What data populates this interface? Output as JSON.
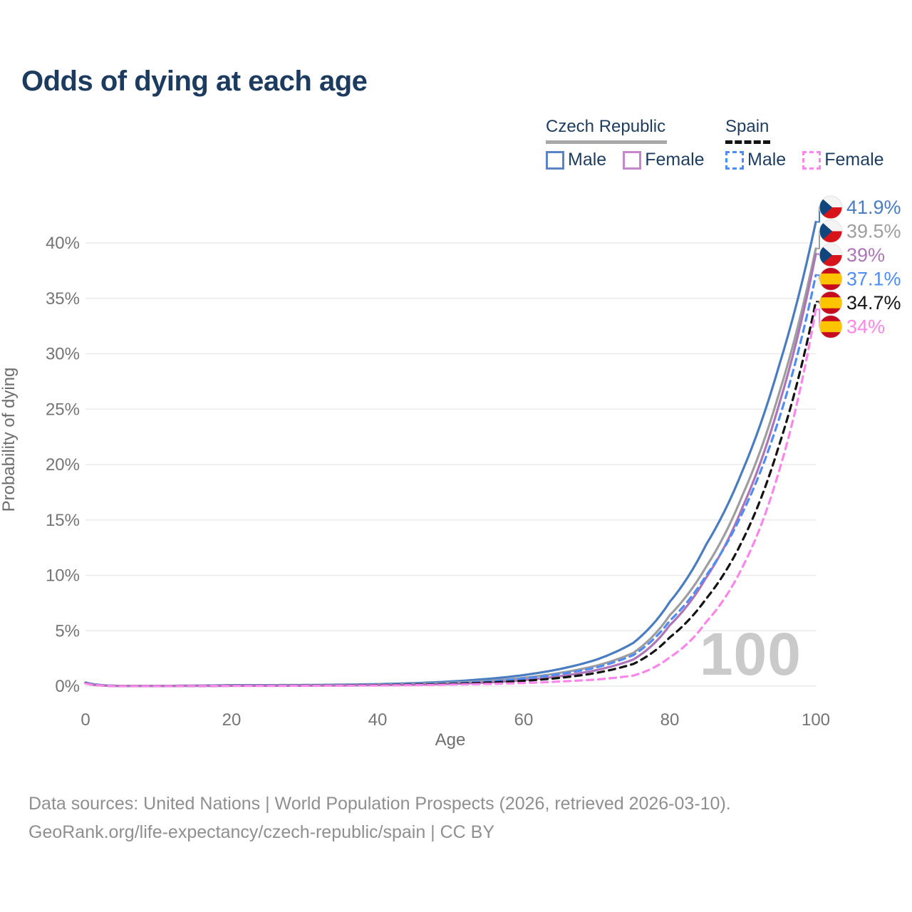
{
  "header": {
    "title": "Odds of dying at each age"
  },
  "legend": {
    "groups": [
      {
        "country": "Czech Republic",
        "line_style": "solid",
        "underline_color": "#a8a8a8",
        "items": [
          {
            "label": "Male",
            "box_color": "#5b84c4",
            "box_style": "solid"
          },
          {
            "label": "Female",
            "box_color": "#c589cb",
            "box_style": "solid"
          }
        ]
      },
      {
        "country": "Spain",
        "line_style": "dashed",
        "underline_color": "#141414",
        "items": [
          {
            "label": "Male",
            "box_color": "#4f8df5",
            "box_style": "dashed"
          },
          {
            "label": "Female",
            "box_color": "#fc86e9",
            "box_style": "dashed"
          }
        ]
      }
    ]
  },
  "chart_data": {
    "type": "line",
    "title": "Odds of dying at each age",
    "xlabel": "Age",
    "ylabel": "Probability of dying",
    "x_ticks": [
      0,
      20,
      40,
      60,
      80,
      100
    ],
    "y_tick_values": [
      0,
      5,
      10,
      15,
      20,
      25,
      30,
      35,
      40
    ],
    "y_tick_labels": [
      "0%",
      "5%",
      "10%",
      "15%",
      "20%",
      "25%",
      "30%",
      "35%",
      "40%"
    ],
    "xlim": [
      0,
      100
    ],
    "ylim_percent": [
      0,
      43
    ],
    "grid": true,
    "legend_position": "top-right",
    "age_watermark": "100",
    "ages": [
      0,
      5,
      10,
      15,
      20,
      25,
      30,
      35,
      40,
      45,
      50,
      55,
      60,
      65,
      70,
      75,
      80,
      85,
      90,
      95,
      100
    ],
    "series": [
      {
        "name": "Czech Republic Male",
        "slug": "czech-republic-male",
        "flag": "cz",
        "color": "#4a7cc0",
        "dash": "solid",
        "end_value": 41.9,
        "end_label": "41.9%",
        "values": [
          0.32,
          0.02,
          0.02,
          0.05,
          0.09,
          0.09,
          0.1,
          0.13,
          0.18,
          0.27,
          0.42,
          0.65,
          1.0,
          1.55,
          2.4,
          3.9,
          7.6,
          12.8,
          19.5,
          29.0,
          41.9
        ]
      },
      {
        "name": "Czech Republic",
        "slug": "czech-republic-total",
        "flag": "cz",
        "color": "#9e9e9e",
        "dash": "solid",
        "end_value": 39.5,
        "end_label": "39.5%",
        "values": [
          0.28,
          0.02,
          0.02,
          0.04,
          0.06,
          0.06,
          0.07,
          0.09,
          0.13,
          0.19,
          0.3,
          0.47,
          0.75,
          1.2,
          1.85,
          3.0,
          6.4,
          10.8,
          17.3,
          26.5,
          39.5
        ]
      },
      {
        "name": "Czech Republic Female",
        "slug": "czech-republic-female",
        "flag": "cz",
        "color": "#ad74b8",
        "dash": "solid",
        "end_value": 39.0,
        "end_label": "39%",
        "values": [
          0.25,
          0.01,
          0.01,
          0.02,
          0.03,
          0.03,
          0.04,
          0.06,
          0.09,
          0.13,
          0.2,
          0.33,
          0.55,
          0.9,
          1.45,
          2.4,
          5.5,
          9.8,
          16.2,
          25.5,
          39.0
        ]
      },
      {
        "name": "Spain Male",
        "slug": "spain-male",
        "flag": "es",
        "color": "#4f8df5",
        "dash": "dashed",
        "end_value": 37.1,
        "end_label": "37.1%",
        "values": [
          0.3,
          0.02,
          0.02,
          0.03,
          0.05,
          0.05,
          0.06,
          0.08,
          0.11,
          0.16,
          0.25,
          0.42,
          0.7,
          1.1,
          1.7,
          2.8,
          5.9,
          10.0,
          15.7,
          24.2,
          37.1
        ]
      },
      {
        "name": "Spain",
        "slug": "spain-total",
        "flag": "es",
        "color": "#141414",
        "dash": "dashed",
        "end_value": 34.7,
        "end_label": "34.7%",
        "values": [
          0.27,
          0.01,
          0.01,
          0.02,
          0.04,
          0.04,
          0.05,
          0.06,
          0.09,
          0.13,
          0.2,
          0.32,
          0.48,
          0.75,
          1.2,
          2.0,
          4.4,
          7.9,
          13.2,
          21.8,
          34.7
        ]
      },
      {
        "name": "Spain Female",
        "slug": "spain-female",
        "flag": "es",
        "color": "#fc86e9",
        "dash": "dashed",
        "end_value": 34.0,
        "end_label": "34%",
        "values": [
          0.24,
          0.01,
          0.01,
          0.02,
          0.03,
          0.03,
          0.03,
          0.04,
          0.06,
          0.09,
          0.14,
          0.2,
          0.28,
          0.42,
          0.6,
          0.95,
          2.6,
          5.8,
          10.8,
          19.5,
          34.0
        ]
      }
    ],
    "flag_colors": {
      "cz": {
        "white": "#f4f4f4",
        "red": "#d7141a",
        "blue": "#11457e"
      },
      "es": {
        "red": "#c60b1e",
        "yellow": "#ffc400"
      }
    }
  },
  "footer": {
    "line1": "Data sources: United Nations | World Population Prospects (2026, retrieved 2026-03-10).",
    "line2": "GeoRank.org/life-expectancy/czech-republic/spain | CC BY"
  }
}
